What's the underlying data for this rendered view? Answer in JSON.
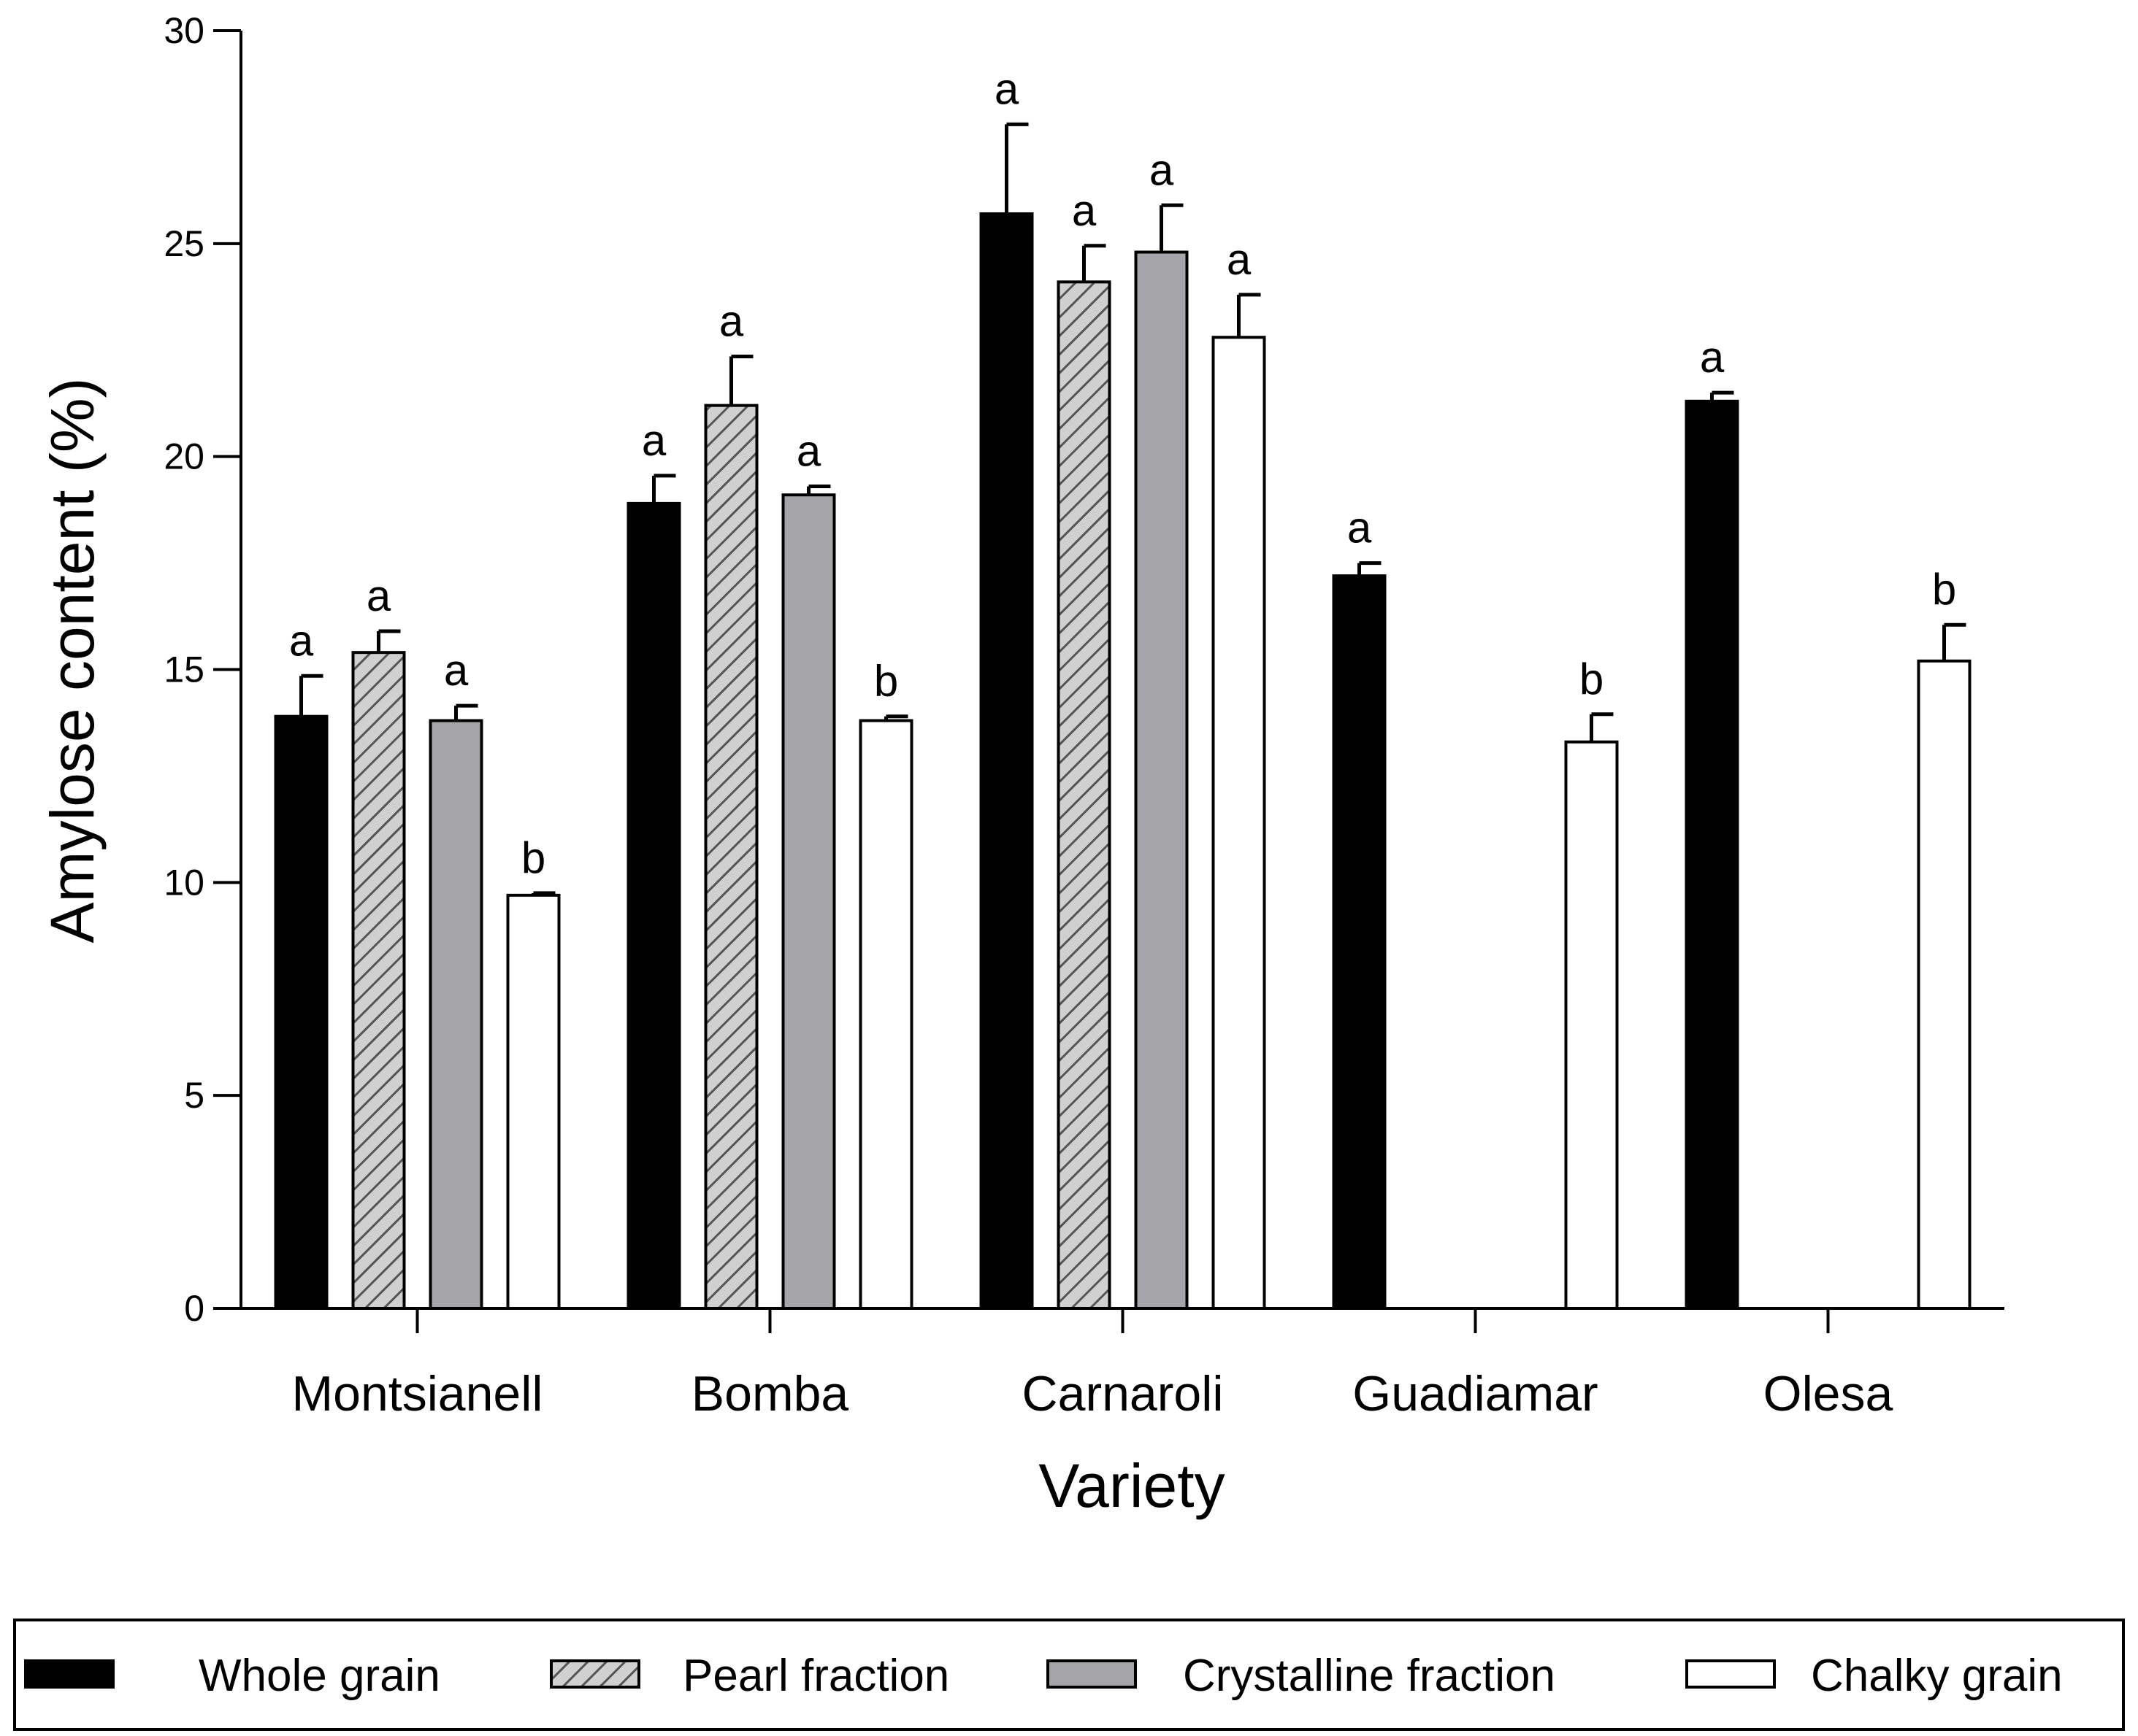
{
  "chart_data": {
    "type": "bar",
    "title": "",
    "xlabel": "Variety",
    "ylabel": "Amylose content (%)",
    "ylim": [
      0,
      30
    ],
    "yticks": [
      0,
      5,
      10,
      15,
      20,
      25,
      30
    ],
    "categories": [
      "Montsianell",
      "Bomba",
      "Carnaroli",
      "Guadiamar",
      "Olesa"
    ],
    "series": [
      {
        "name": "Whole grain",
        "fill": "#000000",
        "pattern": "solid",
        "values": [
          13.9,
          18.9,
          25.7,
          17.2,
          21.3
        ],
        "errors": [
          0.95,
          0.65,
          2.1,
          0.3,
          0.2
        ],
        "letters": [
          "a",
          "a",
          "a",
          "a",
          "a"
        ]
      },
      {
        "name": "Pearl fraction",
        "fill": "#d0d0d0",
        "pattern": "hatch",
        "values": [
          15.4,
          21.2,
          24.1,
          null,
          null
        ],
        "errors": [
          0.5,
          1.15,
          0.85,
          null,
          null
        ],
        "letters": [
          "a",
          "a",
          "a",
          "",
          ""
        ]
      },
      {
        "name": "Crystalline fraction",
        "fill": "#a5a5a9",
        "pattern": "solid",
        "values": [
          13.8,
          19.1,
          24.8,
          null,
          null
        ],
        "errors": [
          0.35,
          0.2,
          1.1,
          null,
          null
        ],
        "letters": [
          "a",
          "a",
          "a",
          "",
          ""
        ]
      },
      {
        "name": "Chalky grain",
        "fill": "#ffffff",
        "pattern": "solid",
        "values": [
          9.7,
          13.8,
          22.8,
          13.3,
          15.2
        ],
        "errors": [
          0.05,
          0.1,
          1.0,
          0.65,
          0.85
        ],
        "letters": [
          "b",
          "b",
          "a",
          "b",
          "b"
        ]
      }
    ],
    "legend_position": "bottom"
  }
}
